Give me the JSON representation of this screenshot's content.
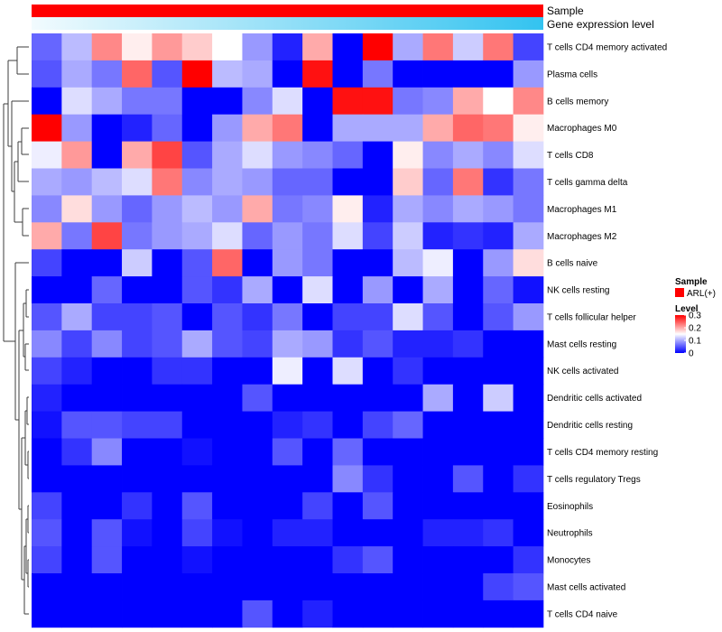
{
  "chart_data": {
    "type": "heatmap",
    "title": "",
    "annotations": [
      {
        "label": "Sample",
        "type": "categorical",
        "colors": [
          "#ff0000"
        ]
      },
      {
        "label": "Gene expression level",
        "type": "gradient",
        "colors": [
          "#f2fbfe",
          "#33c3f0"
        ]
      }
    ],
    "rows": [
      "T cells CD4 memory activated",
      "Plasma cells",
      "B cells memory",
      "Macrophages M0",
      "T cells CD8",
      "T cells gamma delta",
      "Macrophages M1",
      "Macrophages M2",
      "B cells naive",
      "NK cells resting",
      "T cells follicular helper",
      "Mast cells resting",
      "NK cells activated",
      "Dendritic cells activated",
      "Dendritic cells resting",
      "T cells CD4 memory resting",
      "T cells regulatory  Tregs",
      "Eosinophils",
      "Neutrophils",
      "Monocytes",
      "Mast cells activated",
      "T cells CD4 naive"
    ],
    "n_columns": 17,
    "scale": {
      "min": 0,
      "max": 0.3,
      "low_color": "#0000ff",
      "mid_color": "#ffffff",
      "high_color": "#ff0000"
    },
    "values": [
      [
        0.06,
        0.11,
        0.22,
        0.16,
        0.21,
        0.18,
        0.15,
        0.09,
        0.02,
        0.2,
        0.0,
        0.3,
        0.1,
        0.23,
        0.12,
        0.23,
        0.04
      ],
      [
        0.05,
        0.1,
        0.07,
        0.24,
        0.05,
        0.3,
        0.11,
        0.1,
        0.0,
        0.29,
        0.0,
        0.07,
        0.0,
        0.0,
        0.0,
        0.0,
        0.09
      ],
      [
        0.0,
        0.13,
        0.1,
        0.07,
        0.07,
        0.0,
        0.0,
        0.08,
        0.13,
        0.0,
        0.29,
        0.29,
        0.07,
        0.08,
        0.2,
        0.15,
        0.22
      ],
      [
        0.3,
        0.09,
        0.0,
        0.02,
        0.06,
        0.0,
        0.09,
        0.2,
        0.23,
        0.0,
        0.1,
        0.1,
        0.1,
        0.2,
        0.24,
        0.23,
        0.16
      ],
      [
        0.14,
        0.21,
        0.0,
        0.2,
        0.26,
        0.05,
        0.1,
        0.13,
        0.09,
        0.08,
        0.06,
        0.0,
        0.16,
        0.08,
        0.1,
        0.08,
        0.13
      ],
      [
        0.1,
        0.09,
        0.11,
        0.13,
        0.23,
        0.08,
        0.1,
        0.09,
        0.06,
        0.06,
        0.0,
        0.0,
        0.18,
        0.06,
        0.23,
        0.03,
        0.07
      ],
      [
        0.08,
        0.17,
        0.09,
        0.06,
        0.09,
        0.11,
        0.09,
        0.2,
        0.07,
        0.08,
        0.16,
        0.02,
        0.1,
        0.08,
        0.1,
        0.09,
        0.07
      ],
      [
        0.2,
        0.07,
        0.26,
        0.07,
        0.09,
        0.1,
        0.13,
        0.06,
        0.09,
        0.07,
        0.13,
        0.04,
        0.12,
        0.02,
        0.03,
        0.02,
        0.1
      ],
      [
        0.04,
        0.0,
        0.0,
        0.12,
        0.0,
        0.05,
        0.24,
        0.0,
        0.09,
        0.07,
        0.0,
        0.0,
        0.11,
        0.14,
        0.0,
        0.09,
        0.17
      ],
      [
        0.0,
        0.0,
        0.06,
        0.0,
        0.0,
        0.05,
        0.03,
        0.1,
        0.0,
        0.13,
        0.0,
        0.09,
        0.0,
        0.1,
        0.0,
        0.06,
        0.01
      ],
      [
        0.05,
        0.1,
        0.04,
        0.04,
        0.05,
        0.0,
        0.05,
        0.03,
        0.07,
        0.0,
        0.04,
        0.04,
        0.13,
        0.05,
        0.0,
        0.05,
        0.09
      ],
      [
        0.08,
        0.04,
        0.08,
        0.04,
        0.05,
        0.1,
        0.05,
        0.04,
        0.1,
        0.09,
        0.03,
        0.05,
        0.02,
        0.02,
        0.03,
        0.0,
        0.0
      ],
      [
        0.04,
        0.02,
        0.0,
        0.0,
        0.03,
        0.03,
        0.0,
        0.0,
        0.14,
        0.0,
        0.13,
        0.0,
        0.03,
        0.0,
        0.0,
        0.0,
        0.0
      ],
      [
        0.02,
        0.0,
        0.0,
        0.0,
        0.0,
        0.0,
        0.0,
        0.05,
        0.0,
        0.0,
        0.0,
        0.0,
        0.0,
        0.1,
        0.0,
        0.12,
        0.0
      ],
      [
        0.01,
        0.05,
        0.05,
        0.04,
        0.04,
        0.0,
        0.0,
        0.0,
        0.02,
        0.03,
        0.0,
        0.04,
        0.06,
        0.0,
        0.0,
        0.0,
        0.0
      ],
      [
        0.0,
        0.03,
        0.08,
        0.0,
        0.0,
        0.01,
        0.0,
        0.0,
        0.05,
        0.0,
        0.06,
        0.0,
        0.0,
        0.0,
        0.0,
        0.0,
        0.0
      ],
      [
        0.0,
        0.0,
        0.0,
        0.0,
        0.0,
        0.0,
        0.0,
        0.0,
        0.0,
        0.0,
        0.08,
        0.03,
        0.0,
        0.0,
        0.05,
        0.0,
        0.03
      ],
      [
        0.04,
        0.0,
        0.0,
        0.03,
        0.0,
        0.05,
        0.0,
        0.0,
        0.0,
        0.04,
        0.0,
        0.05,
        0.0,
        0.0,
        0.0,
        0.0,
        0.0
      ],
      [
        0.05,
        0.0,
        0.05,
        0.01,
        0.0,
        0.04,
        0.01,
        0.0,
        0.02,
        0.02,
        0.0,
        0.0,
        0.0,
        0.02,
        0.02,
        0.03,
        0.0
      ],
      [
        0.04,
        0.0,
        0.05,
        0.0,
        0.0,
        0.01,
        0.0,
        0.0,
        0.0,
        0.0,
        0.03,
        0.05,
        0.0,
        0.0,
        0.0,
        0.0,
        0.03
      ],
      [
        0.0,
        0.0,
        0.0,
        0.0,
        0.0,
        0.0,
        0.0,
        0.0,
        0.0,
        0.0,
        0.0,
        0.0,
        0.0,
        0.0,
        0.0,
        0.04,
        0.05
      ],
      [
        0.0,
        0.0,
        0.0,
        0.0,
        0.0,
        0.0,
        0.0,
        0.05,
        0.0,
        0.02,
        0.0,
        0.0,
        0.0,
        0.0,
        0.0,
        0.0,
        0.0
      ]
    ]
  },
  "legend": {
    "sample_title": "Sample",
    "sample_item": "ARL(+)",
    "sample_color": "#ff0000",
    "level_title": "Level",
    "ticks": [
      "0.3",
      "0.2",
      "0.1",
      "0"
    ],
    "tick_values": [
      0.3,
      0.2,
      0.1,
      0
    ]
  }
}
